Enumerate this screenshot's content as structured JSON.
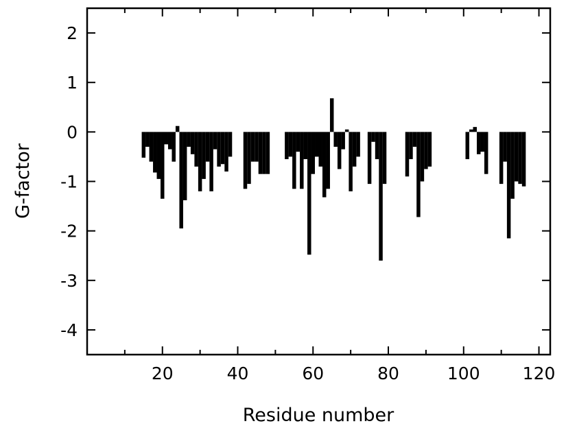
{
  "chart_data": {
    "type": "bar",
    "title": "",
    "xlabel": "Residue number",
    "ylabel": "G-factor",
    "xlim": [
      0,
      123
    ],
    "ylim": [
      -4.5,
      2.5
    ],
    "xticks": [
      20,
      40,
      60,
      80,
      100,
      120
    ],
    "xminor": [
      10,
      30,
      50,
      70,
      90,
      110
    ],
    "yticks": [
      2,
      1,
      0,
      -1,
      -2,
      -3,
      -4
    ],
    "grid": false,
    "legend": "none",
    "bar_color": "#000000",
    "x": [
      15,
      16,
      17,
      18,
      19,
      20,
      21,
      22,
      23,
      24,
      25,
      26,
      27,
      28,
      29,
      30,
      31,
      32,
      33,
      34,
      35,
      36,
      37,
      38,
      42,
      43,
      44,
      45,
      46,
      47,
      48,
      53,
      54,
      55,
      56,
      57,
      58,
      59,
      60,
      61,
      62,
      63,
      64,
      65,
      66,
      67,
      68,
      69,
      70,
      71,
      72,
      75,
      76,
      77,
      78,
      79,
      85,
      86,
      87,
      88,
      89,
      90,
      91,
      101,
      102,
      103,
      104,
      105,
      106,
      110,
      111,
      112,
      113,
      114,
      115,
      116
    ],
    "values": [
      -0.52,
      -0.3,
      -0.6,
      -0.82,
      -0.95,
      -1.35,
      -0.25,
      -0.35,
      -0.6,
      0.12,
      -1.95,
      -1.38,
      -0.3,
      -0.45,
      -0.7,
      -1.2,
      -0.95,
      -0.6,
      -1.2,
      -0.35,
      -0.7,
      -0.65,
      -0.8,
      -0.5,
      -1.15,
      -1.05,
      -0.6,
      -0.6,
      -0.85,
      -0.85,
      -0.85,
      -0.55,
      -0.5,
      -1.15,
      -0.4,
      -1.15,
      -0.55,
      -2.48,
      -0.85,
      -0.5,
      -0.7,
      -1.32,
      -1.15,
      0.68,
      -0.3,
      -0.75,
      -0.35,
      0.05,
      -1.2,
      -0.7,
      -0.5,
      -1.05,
      -0.2,
      -0.55,
      -2.6,
      -1.05,
      -0.9,
      -0.55,
      -0.3,
      -1.72,
      -1.0,
      -0.75,
      -0.7,
      -0.55,
      0.05,
      0.1,
      -0.45,
      -0.4,
      -0.85,
      -1.05,
      -0.6,
      -2.15,
      -1.35,
      -1.0,
      -1.05,
      -1.1
    ]
  }
}
